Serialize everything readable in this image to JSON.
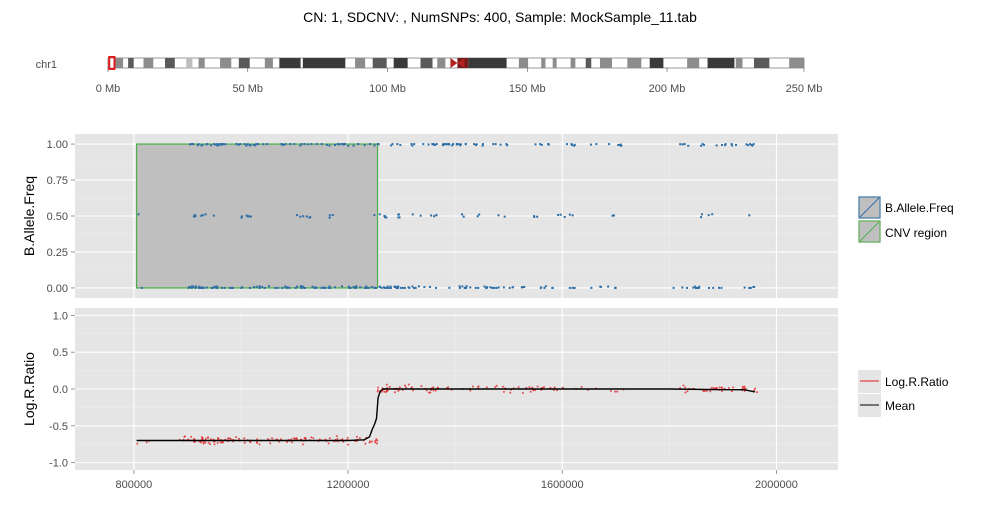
{
  "title": "CN: 1, SDCNV: , NumSNPs: 400, Sample: MockSample_11.tab",
  "ideogram": {
    "chromosome_label": "chr1",
    "tick_labels": [
      "0 Mb",
      "50 Mb",
      "100 Mb",
      "150 Mb",
      "200 Mb",
      "250 Mb"
    ],
    "tick_values_mb": [
      0,
      50,
      100,
      150,
      200,
      250
    ],
    "chromosome_length_mb": 249,
    "centromere_mb": 125,
    "highlight_mb": [
      0.8,
      1.96
    ],
    "bands": [
      {
        "start": 0,
        "end": 2.3,
        "shade": "#ffffff"
      },
      {
        "start": 2.3,
        "end": 5.4,
        "shade": "#8c8c8c"
      },
      {
        "start": 5.4,
        "end": 7.2,
        "shade": "#ffffff"
      },
      {
        "start": 7.2,
        "end": 9.2,
        "shade": "#5a5a5a"
      },
      {
        "start": 9.2,
        "end": 12.7,
        "shade": "#ffffff"
      },
      {
        "start": 12.7,
        "end": 16.2,
        "shade": "#8c8c8c"
      },
      {
        "start": 16.2,
        "end": 20.4,
        "shade": "#ffffff"
      },
      {
        "start": 20.4,
        "end": 23.9,
        "shade": "#5a5a5a"
      },
      {
        "start": 23.9,
        "end": 28.0,
        "shade": "#ffffff"
      },
      {
        "start": 28.0,
        "end": 30.2,
        "shade": "#bdbdbd"
      },
      {
        "start": 30.2,
        "end": 32.4,
        "shade": "#ffffff"
      },
      {
        "start": 32.4,
        "end": 34.6,
        "shade": "#8c8c8c"
      },
      {
        "start": 34.6,
        "end": 40.1,
        "shade": "#ffffff"
      },
      {
        "start": 40.1,
        "end": 44.1,
        "shade": "#8c8c8c"
      },
      {
        "start": 44.1,
        "end": 46.8,
        "shade": "#ffffff"
      },
      {
        "start": 46.8,
        "end": 50.7,
        "shade": "#5a5a5a"
      },
      {
        "start": 50.7,
        "end": 56.1,
        "shade": "#ffffff"
      },
      {
        "start": 56.1,
        "end": 59.0,
        "shade": "#8c8c8c"
      },
      {
        "start": 59.0,
        "end": 61.3,
        "shade": "#ffffff"
      },
      {
        "start": 61.3,
        "end": 68.9,
        "shade": "#3a3a3a"
      },
      {
        "start": 68.9,
        "end": 69.7,
        "shade": "#ffffff"
      },
      {
        "start": 69.7,
        "end": 84.9,
        "shade": "#3a3a3a"
      },
      {
        "start": 84.9,
        "end": 88.4,
        "shade": "#ffffff"
      },
      {
        "start": 88.4,
        "end": 92.0,
        "shade": "#8c8c8c"
      },
      {
        "start": 92.0,
        "end": 94.7,
        "shade": "#ffffff"
      },
      {
        "start": 94.7,
        "end": 99.7,
        "shade": "#5a5a5a"
      },
      {
        "start": 99.7,
        "end": 102.2,
        "shade": "#ffffff"
      },
      {
        "start": 102.2,
        "end": 107.2,
        "shade": "#3a3a3a"
      },
      {
        "start": 107.2,
        "end": 111.8,
        "shade": "#ffffff"
      },
      {
        "start": 111.8,
        "end": 116.1,
        "shade": "#5a5a5a"
      },
      {
        "start": 116.1,
        "end": 117.8,
        "shade": "#ffffff"
      },
      {
        "start": 117.8,
        "end": 120.7,
        "shade": "#8c8c8c"
      },
      {
        "start": 120.7,
        "end": 125.0,
        "shade": "#ffffff"
      },
      {
        "start": 125.0,
        "end": 128.9,
        "shade": "#7a1a1a"
      },
      {
        "start": 128.9,
        "end": 142.6,
        "shade": "#3a3a3a"
      },
      {
        "start": 142.6,
        "end": 147.0,
        "shade": "#ffffff"
      },
      {
        "start": 147.0,
        "end": 150.3,
        "shade": "#8c8c8c"
      },
      {
        "start": 150.3,
        "end": 155.0,
        "shade": "#ffffff"
      },
      {
        "start": 155.0,
        "end": 156.5,
        "shade": "#8c8c8c"
      },
      {
        "start": 156.5,
        "end": 159.1,
        "shade": "#ffffff"
      },
      {
        "start": 159.1,
        "end": 160.5,
        "shade": "#8c8c8c"
      },
      {
        "start": 160.5,
        "end": 165.5,
        "shade": "#ffffff"
      },
      {
        "start": 165.5,
        "end": 167.2,
        "shade": "#8c8c8c"
      },
      {
        "start": 167.2,
        "end": 170.9,
        "shade": "#ffffff"
      },
      {
        "start": 170.9,
        "end": 172.9,
        "shade": "#5a5a5a"
      },
      {
        "start": 172.9,
        "end": 176.0,
        "shade": "#ffffff"
      },
      {
        "start": 176.0,
        "end": 180.3,
        "shade": "#8c8c8c"
      },
      {
        "start": 180.3,
        "end": 185.8,
        "shade": "#ffffff"
      },
      {
        "start": 185.8,
        "end": 190.8,
        "shade": "#8c8c8c"
      },
      {
        "start": 190.8,
        "end": 193.8,
        "shade": "#ffffff"
      },
      {
        "start": 193.8,
        "end": 198.7,
        "shade": "#3a3a3a"
      },
      {
        "start": 198.7,
        "end": 207.2,
        "shade": "#ffffff"
      },
      {
        "start": 207.2,
        "end": 211.5,
        "shade": "#8c8c8c"
      },
      {
        "start": 211.5,
        "end": 214.5,
        "shade": "#ffffff"
      },
      {
        "start": 214.5,
        "end": 224.1,
        "shade": "#3a3a3a"
      },
      {
        "start": 224.1,
        "end": 224.6,
        "shade": "#ffffff"
      },
      {
        "start": 224.6,
        "end": 227.0,
        "shade": "#8c8c8c"
      },
      {
        "start": 227.0,
        "end": 231.1,
        "shade": "#ffffff"
      },
      {
        "start": 231.1,
        "end": 236.6,
        "shade": "#5a5a5a"
      },
      {
        "start": 236.6,
        "end": 243.7,
        "shade": "#ffffff"
      },
      {
        "start": 243.7,
        "end": 249.0,
        "shade": "#8c8c8c"
      }
    ]
  },
  "chart_data": {
    "type": "scatter",
    "x": {
      "tick_values": [
        800000,
        1200000,
        1600000,
        2000000
      ],
      "tick_labels": [
        "800000",
        "1200000",
        "1600000",
        "2000000"
      ],
      "xlim": [
        690000,
        2115000
      ]
    },
    "panels": [
      {
        "ylabel": "B.Allele.Freq",
        "ylim": [
          -0.07,
          1.07
        ],
        "yticks": [
          0.0,
          0.25,
          0.5,
          0.75,
          1.0
        ],
        "ytick_labels": [
          "0.00",
          "0.25",
          "0.50",
          "0.75",
          "1.00"
        ],
        "cnv_region": {
          "x_start": 805000,
          "x_end": 1255000,
          "y_start": 0.0,
          "y_end": 1.0
        },
        "series": [
          {
            "name": "B.Allele.Freq",
            "color": "#2e6fa7",
            "point_groups": [
              {
                "y": 1.0,
                "clusters": [
                  [
                    900000,
                    980000,
                    22
                  ],
                  [
                    990000,
                    1050000,
                    16
                  ],
                  [
                    1065000,
                    1250000,
                    30
                  ],
                  [
                    1255000,
                    1420000,
                    34
                  ],
                  [
                    1430000,
                    1500000,
                    10
                  ],
                  [
                    1540000,
                    1720000,
                    18
                  ],
                  [
                    1820000,
                    1960000,
                    20
                  ]
                ]
              },
              {
                "y": 0.5,
                "clusters": [
                  [
                    805000,
                    820000,
                    1
                  ],
                  [
                    910000,
                    950000,
                    8
                  ],
                  [
                    1000000,
                    1020000,
                    6
                  ],
                  [
                    1100000,
                    1150000,
                    6
                  ],
                  [
                    1165000,
                    1180000,
                    3
                  ],
                  [
                    1245000,
                    1300000,
                    10
                  ],
                  [
                    1310000,
                    1420000,
                    8
                  ],
                  [
                    1430000,
                    1500000,
                    4
                  ],
                  [
                    1545000,
                    1560000,
                    3
                  ],
                  [
                    1590000,
                    1620000,
                    5
                  ],
                  [
                    1690000,
                    1700000,
                    2
                  ],
                  [
                    1850000,
                    1880000,
                    4
                  ],
                  [
                    1945000,
                    1950000,
                    1
                  ]
                ]
              },
              {
                "y": 0.0,
                "clusters": [
                  [
                    805000,
                    820000,
                    1
                  ],
                  [
                    900000,
                    1000000,
                    30
                  ],
                  [
                    1000000,
                    1150000,
                    30
                  ],
                  [
                    1150000,
                    1260000,
                    30
                  ],
                  [
                    1260000,
                    1310000,
                    22
                  ],
                  [
                    1310000,
                    1460000,
                    24
                  ],
                  [
                    1460000,
                    1560000,
                    14
                  ],
                  [
                    1560000,
                    1700000,
                    14
                  ],
                  [
                    1800000,
                    1900000,
                    14
                  ],
                  [
                    1920000,
                    1970000,
                    5
                  ]
                ]
              }
            ]
          }
        ],
        "legend": [
          "B.Allele.Freq",
          "CNV region"
        ]
      },
      {
        "ylabel": "Log.R.Ratio",
        "ylim": [
          -1.1,
          1.1
        ],
        "yticks": [
          -1.0,
          -0.5,
          0.0,
          0.5,
          1.0
        ],
        "ytick_labels": [
          "-1.0",
          "-0.5",
          "0.0",
          "0.5",
          "1.0"
        ],
        "series": [
          {
            "name": "Log.R.Ratio",
            "color": "#e31a1c",
            "point_groups": [
              {
                "y": -0.7,
                "clusters": [
                  [
                    805000,
                    830000,
                    3
                  ],
                  [
                    880000,
                    1000000,
                    60
                  ],
                  [
                    1000000,
                    1120000,
                    40
                  ],
                  [
                    1120000,
                    1255000,
                    45
                  ]
                ]
              },
              {
                "y": 0.0,
                "clusters": [
                  [
                    1255000,
                    1320000,
                    30
                  ],
                  [
                    1320000,
                    1500000,
                    30
                  ],
                  [
                    1500000,
                    1720000,
                    30
                  ],
                  [
                    1820000,
                    1920000,
                    30
                  ],
                  [
                    1920000,
                    1965000,
                    10
                  ]
                ]
              }
            ]
          },
          {
            "name": "Mean",
            "color": "#000000",
            "line": [
              [
                805000,
                -0.7
              ],
              [
                900000,
                -0.7
              ],
              [
                1000000,
                -0.7
              ],
              [
                1100000,
                -0.7
              ],
              [
                1200000,
                -0.7
              ],
              [
                1230000,
                -0.69
              ],
              [
                1240000,
                -0.65
              ],
              [
                1245000,
                -0.55
              ],
              [
                1250000,
                -0.47
              ],
              [
                1253000,
                -0.4
              ],
              [
                1256000,
                -0.12
              ],
              [
                1260000,
                -0.03
              ],
              [
                1265000,
                0.0
              ],
              [
                1300000,
                0.0
              ],
              [
                1400000,
                0.0
              ],
              [
                1500000,
                0.0
              ],
              [
                1600000,
                0.0
              ],
              [
                1700000,
                0.0
              ],
              [
                1800000,
                0.0
              ],
              [
                1900000,
                -0.01
              ],
              [
                1940000,
                -0.01
              ],
              [
                1960000,
                -0.04
              ]
            ]
          }
        ],
        "legend": [
          "Log.R.Ratio",
          "Mean"
        ]
      }
    ]
  },
  "colors": {
    "panel_bg": "#e5e5e5",
    "grid_major": "#ffffff",
    "grid_minor": "#f0f0f0",
    "baf": "#2e6fa7",
    "cnv_fill": "#bfbfbf",
    "cnv_border": "#4daf4a",
    "lrr": "#e31a1c",
    "mean": "#000000",
    "highlight": "#e31a1c",
    "axis_text": "#4d4d4d"
  }
}
